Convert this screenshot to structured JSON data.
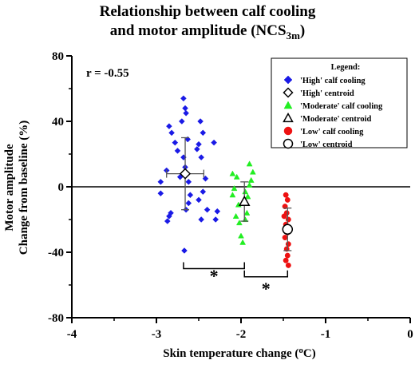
{
  "chart_data": {
    "type": "scatter",
    "title_line1": "Relationship between calf cooling",
    "title_line2_prefix": "and motor amplitude (NCS",
    "title_line2_sub": "3m",
    "title_line2_suffix": ")",
    "xlabel_prefix": "Skin temperature change (",
    "xlabel_sup": "o",
    "xlabel_suffix": "C)",
    "ylabel_line1": "Motor amplitude",
    "ylabel_line2": "Change from baseline (%)",
    "xlim": [
      -4,
      0
    ],
    "ylim": [
      -80,
      80
    ],
    "xticks": [
      -4,
      -3,
      -2,
      -1,
      0
    ],
    "xtick_labels": [
      "-4",
      "-3",
      "-2",
      "-1",
      "0"
    ],
    "yticks": [
      -80,
      -40,
      0,
      40,
      80
    ],
    "ytick_labels": [
      "-80",
      "-40",
      "0",
      "40",
      "80"
    ],
    "annotation_r": "r = -0.55",
    "legend_title": "Legend:",
    "legend_position": "top-right",
    "grid": false,
    "significance_label": "*",
    "series": [
      {
        "name": "'High' calf cooling",
        "marker": "diamond-filled",
        "color": "#1a1ae6",
        "points": [
          [
            -2.85,
            37
          ],
          [
            -2.82,
            33
          ],
          [
            -2.78,
            27
          ],
          [
            -2.75,
            22
          ],
          [
            -2.88,
            10
          ],
          [
            -2.95,
            3
          ],
          [
            -2.95,
            -4
          ],
          [
            -2.85,
            -18
          ],
          [
            -2.87,
            -21
          ],
          [
            -2.83,
            -16
          ],
          [
            -2.68,
            54
          ],
          [
            -2.66,
            48
          ],
          [
            -2.65,
            45
          ],
          [
            -2.7,
            40
          ],
          [
            -2.63,
            29
          ],
          [
            -2.68,
            18
          ],
          [
            -2.66,
            12
          ],
          [
            -2.72,
            6
          ],
          [
            -2.62,
            3
          ],
          [
            -2.6,
            -5
          ],
          [
            -2.62,
            -10
          ],
          [
            -2.65,
            -14
          ],
          [
            -2.67,
            -39
          ],
          [
            -2.48,
            40
          ],
          [
            -2.45,
            33
          ],
          [
            -2.5,
            26
          ],
          [
            -2.52,
            23
          ],
          [
            -2.47,
            18
          ],
          [
            -2.42,
            5
          ],
          [
            -2.45,
            -3
          ],
          [
            -2.5,
            -8
          ],
          [
            -2.4,
            -14
          ],
          [
            -2.47,
            -20
          ],
          [
            -2.32,
            27
          ],
          [
            -2.28,
            -15
          ],
          [
            -2.3,
            -20
          ]
        ]
      },
      {
        "name": "'High' centroid",
        "marker": "diamond-open",
        "color": "#000000",
        "points": [
          [
            -2.66,
            8
          ]
        ],
        "xerr": 0.22,
        "yerr": 22
      },
      {
        "name": "'Moderate' calf cooling",
        "marker": "triangle-filled",
        "color": "#22ee22",
        "points": [
          [
            -2.1,
            -5
          ],
          [
            -2.08,
            -1
          ],
          [
            -2.05,
            6
          ],
          [
            -2.1,
            8
          ],
          [
            -2.03,
            -11
          ],
          [
            -2.06,
            -18
          ],
          [
            -2.02,
            -22
          ],
          [
            -2.0,
            -30
          ],
          [
            -1.98,
            -34
          ],
          [
            -1.95,
            -20
          ],
          [
            -1.93,
            -16
          ],
          [
            -1.92,
            -6
          ],
          [
            -1.9,
            1
          ],
          [
            -1.88,
            4
          ],
          [
            -1.86,
            9
          ],
          [
            -1.9,
            14
          ],
          [
            -1.95,
            -3
          ]
        ]
      },
      {
        "name": "'Moderate' centroid",
        "marker": "triangle-open",
        "color": "#000000",
        "points": [
          [
            -1.96,
            -9
          ]
        ],
        "xerr": 0,
        "yerr": 12
      },
      {
        "name": "'Low' calf cooling",
        "marker": "circle-filled",
        "color": "#ee1111",
        "points": [
          [
            -1.47,
            -5
          ],
          [
            -1.45,
            -8
          ],
          [
            -1.48,
            -12
          ],
          [
            -1.46,
            -16
          ],
          [
            -1.44,
            -20
          ],
          [
            -1.47,
            -23
          ],
          [
            -1.45,
            -28
          ],
          [
            -1.48,
            -31
          ],
          [
            -1.44,
            -35
          ],
          [
            -1.46,
            -38
          ],
          [
            -1.45,
            -42
          ],
          [
            -1.47,
            -45
          ],
          [
            -1.44,
            -48
          ],
          [
            -1.43,
            -26
          ],
          [
            -1.49,
            -18
          ]
        ]
      },
      {
        "name": "'Low' centroid",
        "marker": "circle-open",
        "color": "#000000",
        "points": [
          [
            -1.45,
            -26
          ]
        ],
        "xerr": 0,
        "yerr": 13
      }
    ],
    "brackets": [
      {
        "x1": -2.68,
        "x2": -1.96,
        "y": -50,
        "star_y": -55
      },
      {
        "x1": -1.96,
        "x2": -1.45,
        "y": -55,
        "star_y": -63
      }
    ]
  }
}
